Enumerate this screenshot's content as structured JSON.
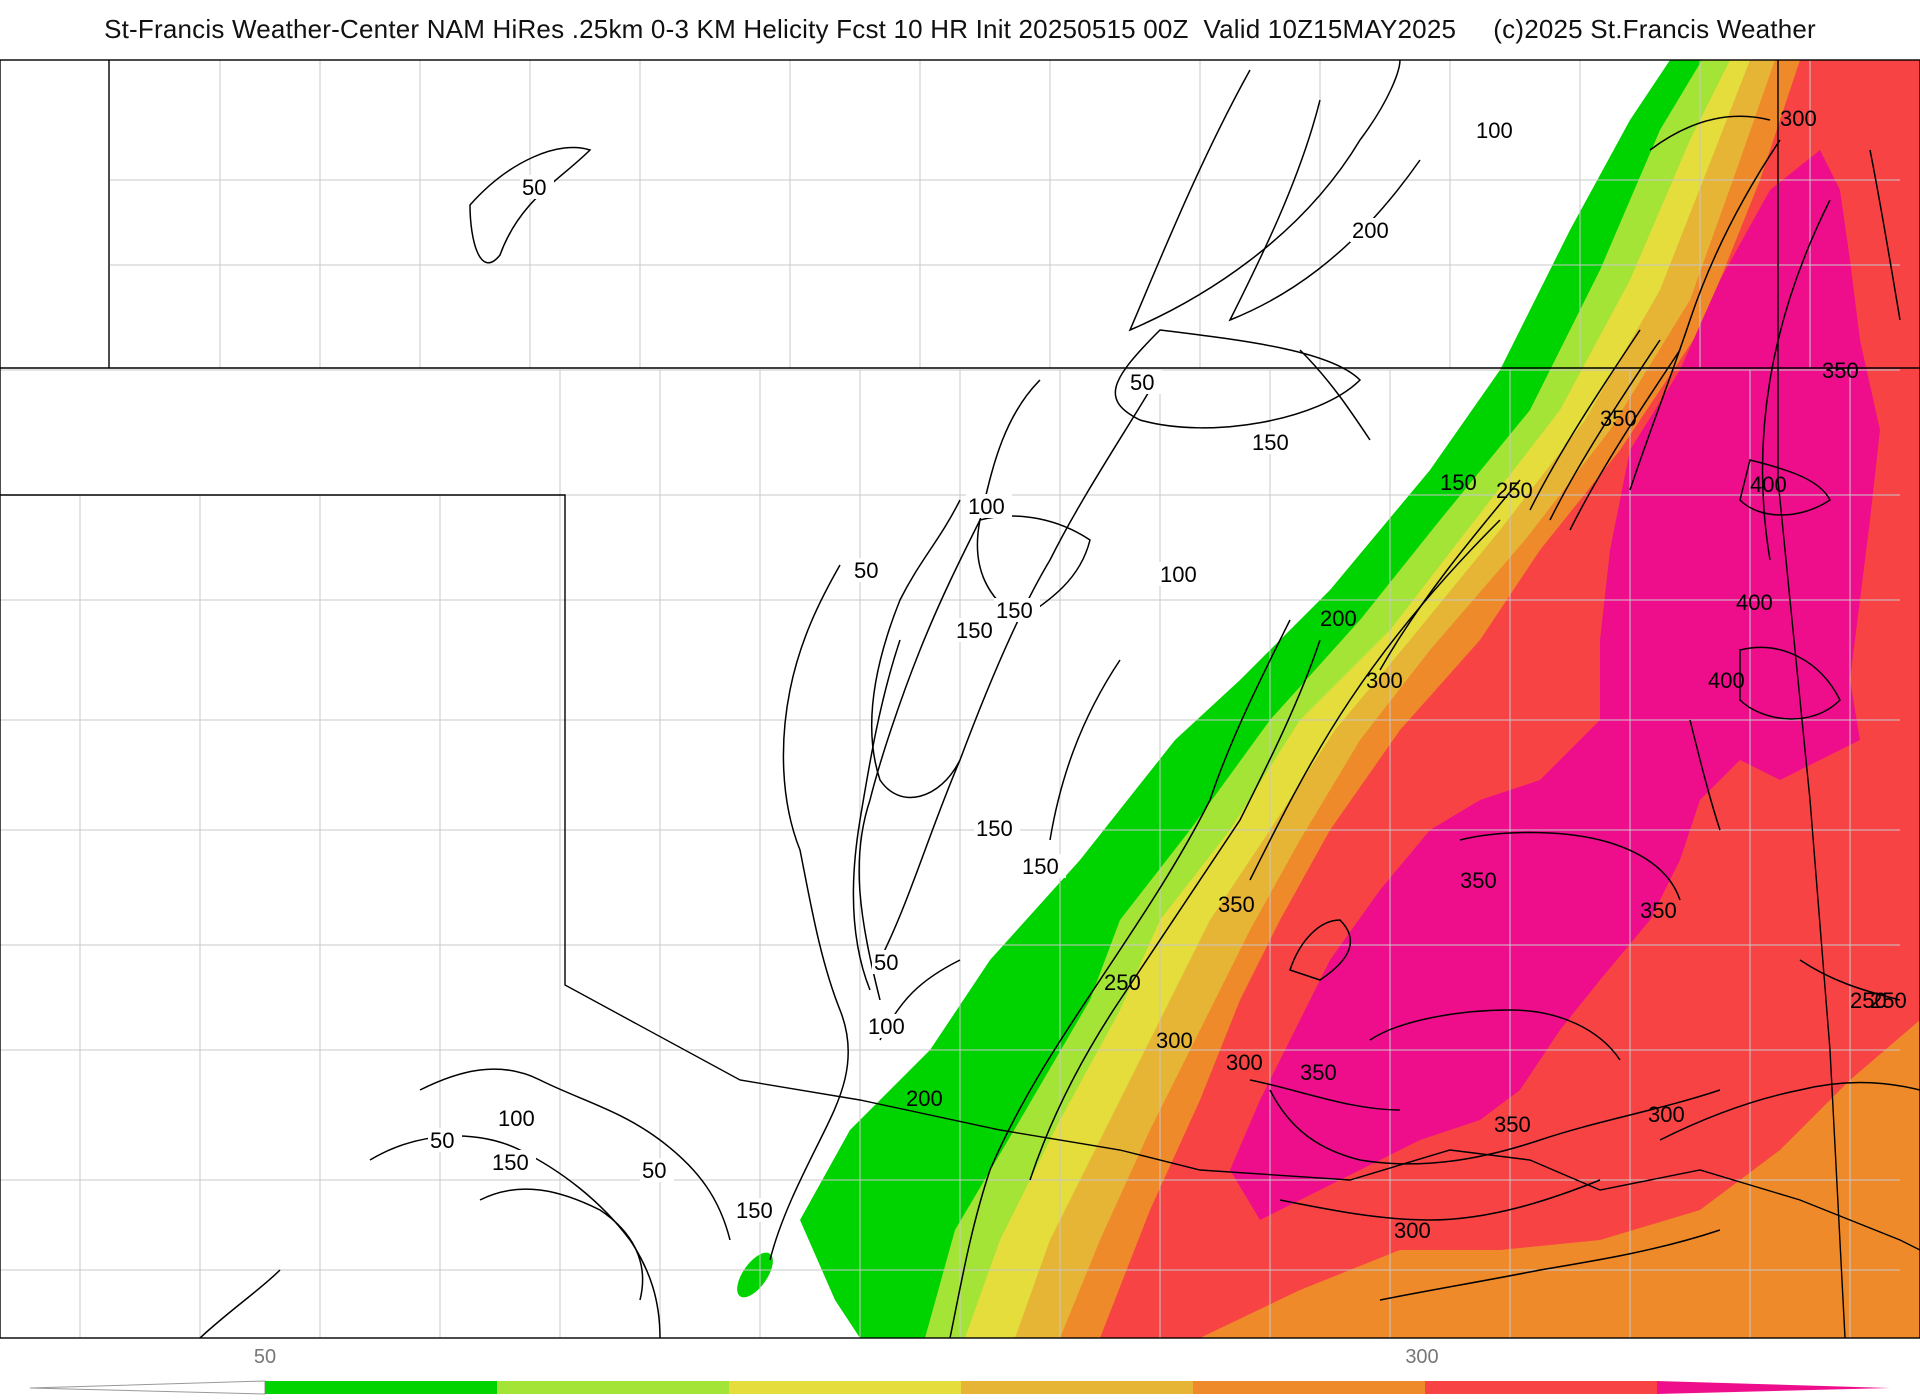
{
  "title": "St-Francis Weather-Center NAM HiRes .25km 0-3 KM Helicity Fcst 10 HR Init 20250515 00Z  Valid 10Z15MAY2025     (c)2025 St.Francis Weather",
  "colors": {
    "c50": "#00d400",
    "c100": "#a3e436",
    "c150": "#e4dd3c",
    "c200": "#e6b535",
    "c250": "#ef8a2a",
    "c300": "#f74344",
    "c350": "#ee0e8c",
    "border": "#000000",
    "county": "#c8c8c8"
  },
  "colorbar": {
    "tick_labels": [
      "50",
      "300"
    ],
    "bins": [
      "<50",
      "50",
      "100",
      "150",
      "200",
      "250",
      "300",
      "350+"
    ]
  },
  "contour_labels": [
    {
      "text": "50"
    },
    {
      "text": "100"
    },
    {
      "text": "200"
    },
    {
      "text": "50"
    },
    {
      "text": "150"
    },
    {
      "text": "100"
    },
    {
      "text": "50"
    },
    {
      "text": "100"
    },
    {
      "text": "150"
    },
    {
      "text": "150"
    },
    {
      "text": "150"
    },
    {
      "text": "150"
    },
    {
      "text": "50"
    },
    {
      "text": "100"
    },
    {
      "text": "200"
    },
    {
      "text": "100"
    },
    {
      "text": "50"
    },
    {
      "text": "150"
    },
    {
      "text": "50"
    },
    {
      "text": "150"
    },
    {
      "text": "300"
    },
    {
      "text": "350"
    },
    {
      "text": "350"
    },
    {
      "text": "250"
    },
    {
      "text": "200"
    },
    {
      "text": "300"
    },
    {
      "text": "150"
    },
    {
      "text": "250"
    },
    {
      "text": "350"
    },
    {
      "text": "400"
    },
    {
      "text": "400"
    },
    {
      "text": "400"
    },
    {
      "text": "350"
    },
    {
      "text": "350"
    },
    {
      "text": "250"
    },
    {
      "text": "300"
    },
    {
      "text": "350"
    },
    {
      "text": "300"
    },
    {
      "text": "250"
    },
    {
      "text": "300"
    },
    {
      "text": "350"
    },
    {
      "text": "300"
    }
  ]
}
